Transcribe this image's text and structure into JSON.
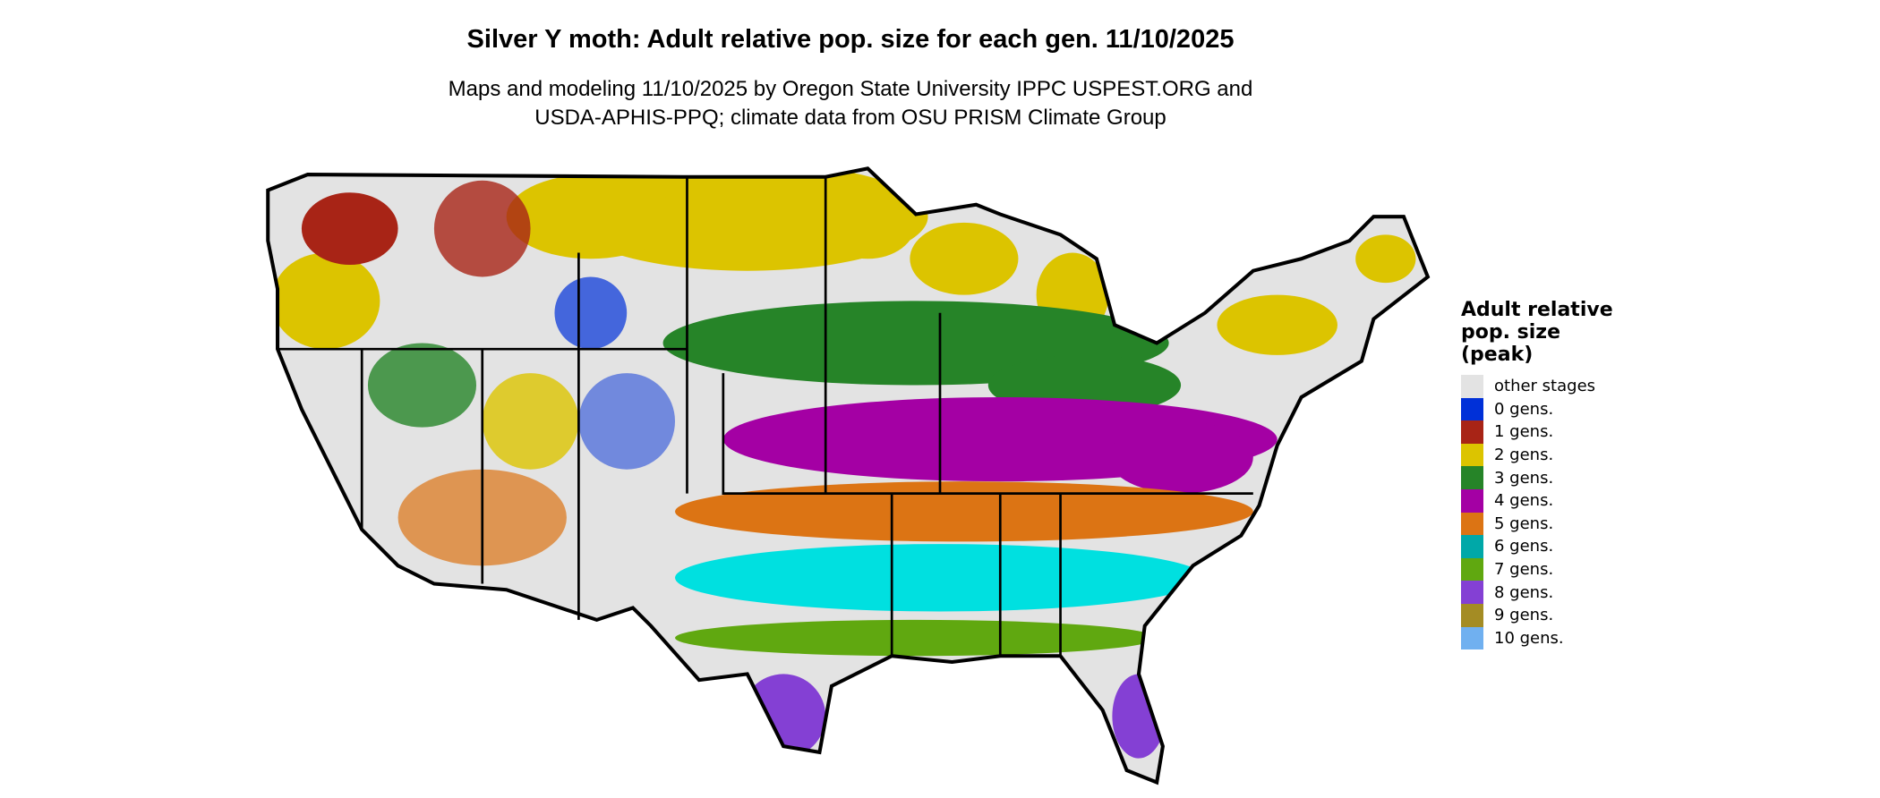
{
  "title": "Silver Y moth: Adult relative pop. size for each gen. 11/10/2025",
  "subtitle_lines": [
    "Maps and modeling 11/10/2025 by Oregon State University IPPC USPEST.ORG and",
    "USDA-APHIS-PPQ; climate data from OSU PRISM Climate Group"
  ],
  "legend": {
    "title_lines": [
      "Adult relative",
      "pop. size",
      "(peak)"
    ],
    "items": [
      {
        "label": "other stages",
        "color": "#e3e3e3"
      },
      {
        "label": "0 gens.",
        "color": "#0030d8"
      },
      {
        "label": "1 gens.",
        "color": "#a82416"
      },
      {
        "label": "2 gens.",
        "color": "#dcc400"
      },
      {
        "label": "3 gens.",
        "color": "#268428"
      },
      {
        "label": "4 gens.",
        "color": "#a400a4"
      },
      {
        "label": "5 gens.",
        "color": "#dc7414"
      },
      {
        "label": "6 gens.",
        "color": "#00a8a8"
      },
      {
        "label": "7 gens.",
        "color": "#60a810"
      },
      {
        "label": "8 gens.",
        "color": "#8440d4"
      },
      {
        "label": "9 gens.",
        "color": "#a48c24"
      },
      {
        "label": "10 gens.",
        "color": "#70b0f0"
      }
    ]
  }
}
